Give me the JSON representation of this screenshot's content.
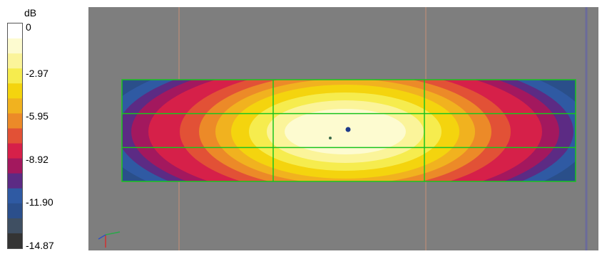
{
  "colorbar": {
    "unit": "dB",
    "ticks": [
      "0",
      "-2.97",
      "-5.95",
      "-8.92",
      "-11.90",
      "-14.87"
    ],
    "colors": [
      "#ffffff",
      "#fdfbd0",
      "#fbf49a",
      "#f6ec4e",
      "#f4d40e",
      "#f1b21f",
      "#ec8a28",
      "#e25136",
      "#d62049",
      "#a3185e",
      "#5c2b84",
      "#2f5aa3",
      "#2b4f8c",
      "#3f4f62",
      "#343434"
    ]
  },
  "colors": {
    "background": "#7e7e7e",
    "grid_lines": "#19c41e",
    "guide_lines": "#a3877a"
  },
  "plot": {
    "grid_rows": 3,
    "grid_cols": 3
  }
}
